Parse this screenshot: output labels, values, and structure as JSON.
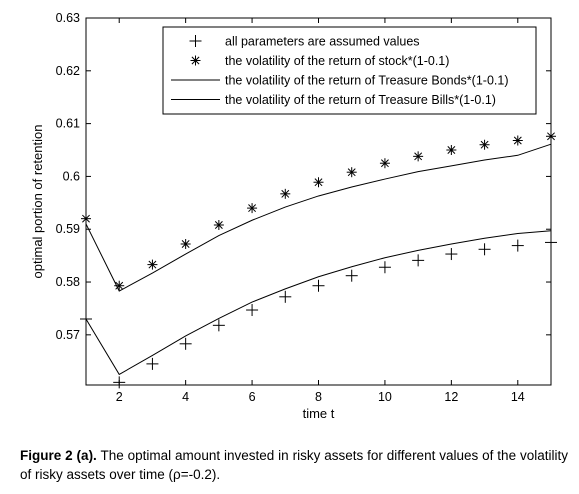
{
  "chart_data": {
    "type": "scatter",
    "xlabel": "time t",
    "ylabel": "optimal portion of retention",
    "xlim": [
      1,
      15
    ],
    "ylim": [
      0.5605,
      0.63
    ],
    "xticks": [
      2,
      4,
      6,
      8,
      10,
      12,
      14
    ],
    "yticks": [
      0.57,
      0.58,
      0.59,
      0.6,
      0.61,
      0.62,
      0.63
    ],
    "ytick_labels": [
      "0.57",
      "0.58",
      "0.59",
      "0.6",
      "0.61",
      "0.62",
      "0.63"
    ],
    "legend_position": "top-right",
    "x": [
      1,
      2,
      3,
      4,
      5,
      6,
      7,
      8,
      9,
      10,
      11,
      12,
      13,
      14,
      15
    ],
    "series": [
      {
        "name": "all parameters are assumed values",
        "marker": "plus",
        "values": [
          0.573,
          0.561,
          0.5645,
          0.5683,
          0.5718,
          0.5747,
          0.5772,
          0.5793,
          0.5812,
          0.5828,
          0.5841,
          0.5853,
          0.5862,
          0.5869,
          0.5875
        ]
      },
      {
        "name": "the volatility of the return of stock*(1-0.1)",
        "marker": "asterisk",
        "values": [
          0.592,
          0.5793,
          0.5833,
          0.5872,
          0.5908,
          0.594,
          0.5967,
          0.5989,
          0.6008,
          0.6025,
          0.6038,
          0.605,
          0.606,
          0.6068,
          0.6076
        ]
      },
      {
        "name": "the volatility of the return of Treasure Bonds*(1-0.1)",
        "marker": "line",
        "values": [
          0.591,
          0.5783,
          0.5817,
          0.5853,
          0.5888,
          0.5917,
          0.5942,
          0.5963,
          0.598,
          0.5995,
          0.6009,
          0.602,
          0.6031,
          0.604,
          0.6061
        ]
      },
      {
        "name": "the volatility of the return of Treasure Bills*(1-0.1)",
        "marker": "line",
        "values": [
          0.573,
          0.5625,
          0.5661,
          0.5698,
          0.5731,
          0.5762,
          0.5787,
          0.581,
          0.5829,
          0.5846,
          0.586,
          0.5872,
          0.5883,
          0.5892,
          0.5897
        ]
      }
    ]
  },
  "caption": {
    "label": "Figure 2 (a).",
    "text": " The optimal amount invested in risky assets for different values of the volatility of risky assets over time (ρ=-0.2)."
  }
}
